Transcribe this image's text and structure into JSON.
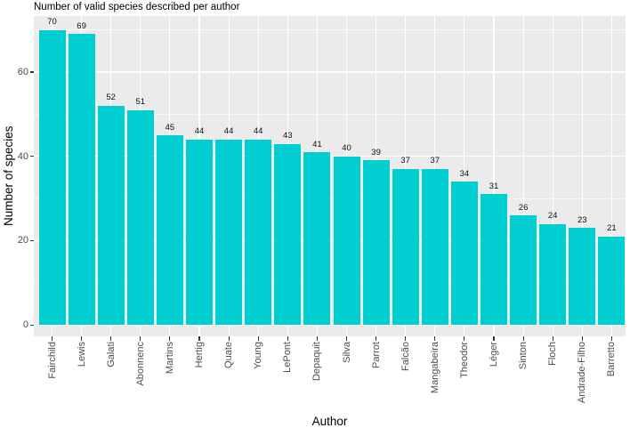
{
  "chart_data": {
    "type": "bar",
    "title": "Number of valid species described per author",
    "xlabel": "Author",
    "ylabel": "Number of species",
    "categories": [
      "Fairchild",
      "Lewis",
      "Galati",
      "Abonnenc",
      "Martins",
      "Hertig",
      "Quate",
      "Young",
      "LePont",
      "Depaquit",
      "Silva",
      "Parrot",
      "Falcão",
      "Mangabeira",
      "Theodor",
      "Léger",
      "Sinton",
      "Floch",
      "Andrade-Filho",
      "Barretto"
    ],
    "values": [
      70,
      69,
      52,
      51,
      45,
      44,
      44,
      44,
      43,
      41,
      40,
      39,
      37,
      37,
      34,
      31,
      26,
      24,
      23,
      21
    ],
    "bar_value_labels_shown": true,
    "y_major_ticks": [
      0,
      20,
      40,
      60
    ],
    "y_minor_gridlines": [
      10,
      30,
      50,
      70
    ],
    "ylim": [
      -2.7,
      73.3
    ],
    "grid": true,
    "legend_position": "none",
    "colors": {
      "bar_fill": "#00CED1",
      "panel_background": "#EBEBEB",
      "gridline": "#FFFFFF",
      "axis_text": "#4D4D4D",
      "title_text": "#000000",
      "tick_mark": "#333333"
    }
  }
}
